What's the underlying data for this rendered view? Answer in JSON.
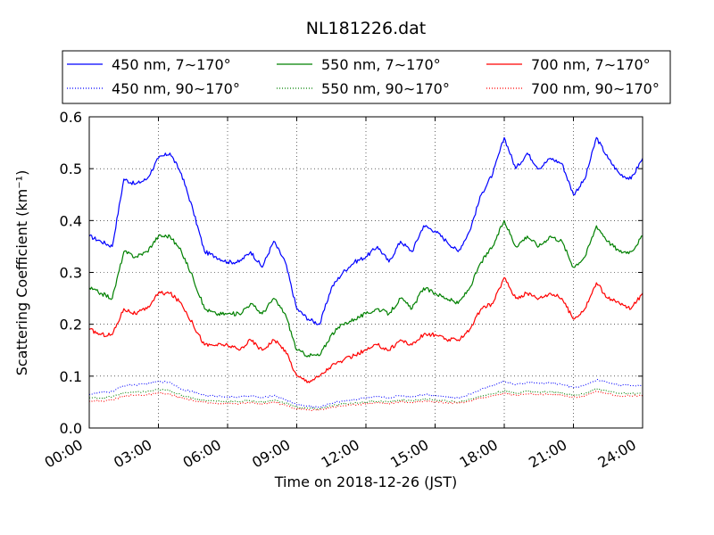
{
  "chart_data": {
    "type": "line",
    "title": "NL181226.dat",
    "xlabel": "Time on 2018-12-26 (JST)",
    "ylabel": "Scattering Coefficient (km⁻¹)",
    "xlim": [
      "00:00",
      "24:00"
    ],
    "ylim": [
      0,
      0.6
    ],
    "x_ticks": [
      "00:00",
      "03:00",
      "06:00",
      "09:00",
      "12:00",
      "15:00",
      "18:00",
      "21:00",
      "24:00"
    ],
    "y_ticks": [
      "0.0",
      "0.1",
      "0.2",
      "0.3",
      "0.4",
      "0.5",
      "0.6"
    ],
    "grid": true,
    "legend_position": "top",
    "x": [
      "00:00",
      "00:30",
      "01:00",
      "01:30",
      "02:00",
      "02:30",
      "03:00",
      "03:30",
      "04:00",
      "04:30",
      "05:00",
      "05:30",
      "06:00",
      "06:30",
      "07:00",
      "07:30",
      "08:00",
      "08:30",
      "09:00",
      "09:30",
      "10:00",
      "10:30",
      "11:00",
      "11:30",
      "12:00",
      "12:30",
      "13:00",
      "13:30",
      "14:00",
      "14:30",
      "15:00",
      "15:30",
      "16:00",
      "16:30",
      "17:00",
      "17:30",
      "18:00",
      "18:30",
      "19:00",
      "19:30",
      "20:00",
      "20:30",
      "21:00",
      "21:30",
      "22:00",
      "22:30",
      "23:00",
      "23:30",
      "24:00"
    ],
    "series": [
      {
        "name": "450 nm, 7∼170°",
        "color": "#0000ff",
        "style": "solid",
        "values": [
          0.37,
          0.36,
          0.35,
          0.48,
          0.47,
          0.48,
          0.52,
          0.53,
          0.49,
          0.42,
          0.34,
          0.33,
          0.32,
          0.32,
          0.34,
          0.31,
          0.36,
          0.32,
          0.23,
          0.21,
          0.2,
          0.27,
          0.3,
          0.32,
          0.33,
          0.35,
          0.32,
          0.36,
          0.34,
          0.39,
          0.38,
          0.36,
          0.34,
          0.38,
          0.45,
          0.49,
          0.56,
          0.5,
          0.53,
          0.5,
          0.52,
          0.51,
          0.45,
          0.48,
          0.56,
          0.52,
          0.49,
          0.48,
          0.52
        ]
      },
      {
        "name": "450 nm, 90∼170°",
        "color": "#0000ff",
        "style": "dotted",
        "values": [
          0.065,
          0.068,
          0.07,
          0.082,
          0.083,
          0.085,
          0.09,
          0.088,
          0.075,
          0.07,
          0.063,
          0.062,
          0.06,
          0.06,
          0.062,
          0.058,
          0.063,
          0.055,
          0.045,
          0.042,
          0.04,
          0.048,
          0.052,
          0.055,
          0.058,
          0.06,
          0.058,
          0.063,
          0.06,
          0.065,
          0.063,
          0.06,
          0.058,
          0.065,
          0.075,
          0.082,
          0.09,
          0.083,
          0.088,
          0.086,
          0.087,
          0.084,
          0.078,
          0.082,
          0.093,
          0.088,
          0.083,
          0.082,
          0.082
        ]
      },
      {
        "name": "550 nm, 7∼170°",
        "color": "#008000",
        "style": "solid",
        "values": [
          0.27,
          0.26,
          0.25,
          0.34,
          0.33,
          0.34,
          0.37,
          0.37,
          0.34,
          0.29,
          0.23,
          0.22,
          0.22,
          0.22,
          0.24,
          0.22,
          0.25,
          0.22,
          0.15,
          0.14,
          0.14,
          0.18,
          0.2,
          0.21,
          0.22,
          0.23,
          0.22,
          0.25,
          0.23,
          0.27,
          0.26,
          0.25,
          0.24,
          0.27,
          0.32,
          0.35,
          0.4,
          0.35,
          0.37,
          0.35,
          0.37,
          0.36,
          0.31,
          0.33,
          0.39,
          0.36,
          0.34,
          0.34,
          0.37
        ]
      },
      {
        "name": "550 nm, 90∼170°",
        "color": "#008000",
        "style": "dotted",
        "values": [
          0.058,
          0.058,
          0.06,
          0.068,
          0.069,
          0.07,
          0.074,
          0.072,
          0.063,
          0.058,
          0.053,
          0.052,
          0.051,
          0.051,
          0.053,
          0.05,
          0.054,
          0.048,
          0.04,
          0.038,
          0.037,
          0.043,
          0.046,
          0.048,
          0.05,
          0.052,
          0.05,
          0.054,
          0.052,
          0.056,
          0.054,
          0.052,
          0.05,
          0.055,
          0.062,
          0.066,
          0.072,
          0.067,
          0.071,
          0.069,
          0.07,
          0.068,
          0.063,
          0.066,
          0.076,
          0.071,
          0.067,
          0.066,
          0.067
        ]
      },
      {
        "name": "700 nm, 7∼170°",
        "color": "#ff0000",
        "style": "solid",
        "values": [
          0.19,
          0.18,
          0.18,
          0.23,
          0.22,
          0.23,
          0.26,
          0.26,
          0.24,
          0.2,
          0.16,
          0.16,
          0.16,
          0.15,
          0.17,
          0.15,
          0.17,
          0.15,
          0.1,
          0.09,
          0.1,
          0.12,
          0.13,
          0.14,
          0.15,
          0.16,
          0.15,
          0.17,
          0.16,
          0.18,
          0.18,
          0.17,
          0.17,
          0.19,
          0.23,
          0.24,
          0.29,
          0.25,
          0.26,
          0.25,
          0.26,
          0.25,
          0.21,
          0.23,
          0.28,
          0.25,
          0.24,
          0.23,
          0.26
        ]
      },
      {
        "name": "700 nm, 90∼170°",
        "color": "#ff0000",
        "style": "dotted",
        "values": [
          0.052,
          0.052,
          0.054,
          0.062,
          0.063,
          0.064,
          0.067,
          0.065,
          0.058,
          0.053,
          0.049,
          0.048,
          0.047,
          0.047,
          0.049,
          0.046,
          0.05,
          0.044,
          0.037,
          0.035,
          0.035,
          0.04,
          0.043,
          0.045,
          0.047,
          0.049,
          0.047,
          0.051,
          0.049,
          0.052,
          0.051,
          0.049,
          0.048,
          0.052,
          0.058,
          0.062,
          0.067,
          0.063,
          0.066,
          0.064,
          0.065,
          0.063,
          0.059,
          0.062,
          0.071,
          0.066,
          0.062,
          0.062,
          0.063
        ]
      }
    ]
  }
}
